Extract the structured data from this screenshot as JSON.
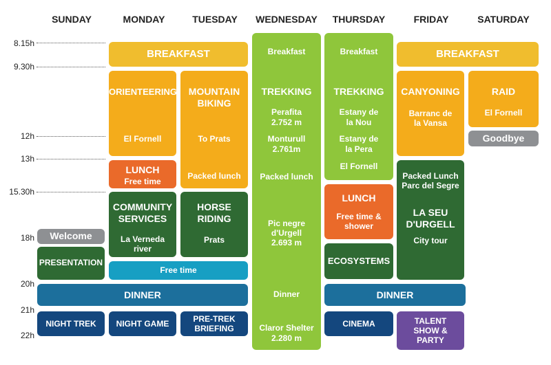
{
  "days": [
    "SUNDAY",
    "MONDAY",
    "TUESDAY",
    "WEDNESDAY",
    "THURSDAY",
    "FRIDAY",
    "SATURDAY"
  ],
  "times": [
    "8.15h",
    "9.30h",
    "12h",
    "13h",
    "15.30h",
    "18h",
    "20h",
    "21h",
    "22h"
  ],
  "colors": {
    "breakfast_yellow": "#f0bd2e",
    "activity_orange": "#f4ac1b",
    "lunch_red": "#ea6a2a",
    "activity_green": "#2f6a33",
    "trek_light_green": "#8fc63b",
    "dinner_blue": "#1c6f9c",
    "night_dark_blue": "#14477e",
    "free_time_cyan": "#179fc3",
    "welcome_grey": "#8e9093",
    "party_purple": "#6c4c9d"
  },
  "blocks": {
    "breakfast_mon_tue": "BREAKFAST",
    "wednesday": {
      "breakfast": "Breakfast",
      "title": "TREKKING",
      "place1": "Perafita",
      "alt1": "2.752 m",
      "place2": "Monturull",
      "alt2": "2.761m",
      "lunch": "Packed lunch",
      "peak_line1": "Pic negre",
      "peak_line2": "d'Urgell",
      "peak_alt": "2.693 m",
      "dinner": "Dinner",
      "shelter": "Claror Shelter",
      "shelter_alt": "2.280 m"
    },
    "thursday": {
      "breakfast": "Breakfast",
      "title": "TREKKING",
      "place1_line1": "Estany de",
      "place1_line2": "la Nou",
      "place2_line1": "Estany de",
      "place2_line2": "la Pera",
      "place3": "El Fornell",
      "lunch_title": "LUNCH",
      "lunch_line1": "Free time  &",
      "lunch_line2": "shower",
      "ecosystems": "ECOSYSTEMS",
      "cinema": "CINEMA"
    },
    "breakfast_fri_sat": "BREAKFAST",
    "orienteering": {
      "title": "ORIENTEERING",
      "place": "El Fornell"
    },
    "mountain_biking": {
      "line1": "MOUNTAIN",
      "line2": "BIKING",
      "place": "To Prats",
      "lunch": "Packed lunch"
    },
    "lunch_monday": {
      "title": "LUNCH",
      "sub": "Free time"
    },
    "community": {
      "line1": "COMMUNITY",
      "line2": "SERVICES",
      "place1": "La Verneda",
      "place2": "river"
    },
    "horse": {
      "line1": "HORSE",
      "line2": "RIDING",
      "place": "Prats"
    },
    "free_time": "Free time",
    "canyoning": {
      "title": "CANYONING",
      "line1": "Barranc de",
      "line2": "la Vansa"
    },
    "friday_green": {
      "lunch1": "Packed Lunch",
      "lunch2": "Parc del Segre",
      "title1": "LA SEU",
      "title2": "D'URGELL",
      "sub": "City tour"
    },
    "raid": {
      "title": "RAID",
      "place": "El Fornell"
    },
    "goodbye": "Goodbye",
    "welcome": "Welcome",
    "presentation": "PRESENTATION",
    "dinner_left": "DINNER",
    "dinner_right": "DINNER",
    "night_trek": "NIGHT TREK",
    "night_game": "NIGHT GAME",
    "pre_trek": {
      "line1": "PRE-TREK",
      "line2": "BRIEFING"
    },
    "talent": {
      "line1": "TALENT",
      "line2": "SHOW &",
      "line3": "PARTY"
    }
  }
}
